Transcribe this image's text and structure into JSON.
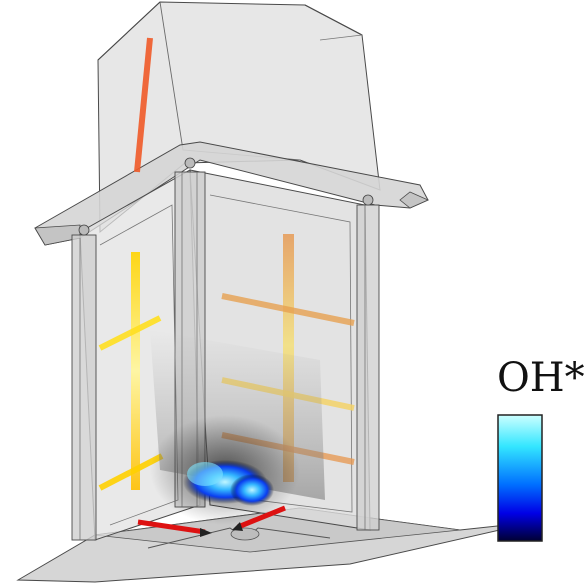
{
  "figure": {
    "description_type": "3D chamber cutaway with OH* chemiluminescence flame and laser/diagnostic sheets",
    "legend": {
      "title": "OH*",
      "gradient_colors": [
        "#ccffff",
        "#33e6ff",
        "#0070ff",
        "#0000e6",
        "#000033"
      ]
    },
    "colors": {
      "chamber_fill": "#d9d9d9",
      "chamber_stroke": "#555555",
      "sheet_orange": "#f05a28",
      "sheet_yellow": "#ffd400",
      "sheet_tan": "#e69a55",
      "inlet_red": "#dd1111",
      "flame_core": "#1e6bff"
    }
  }
}
